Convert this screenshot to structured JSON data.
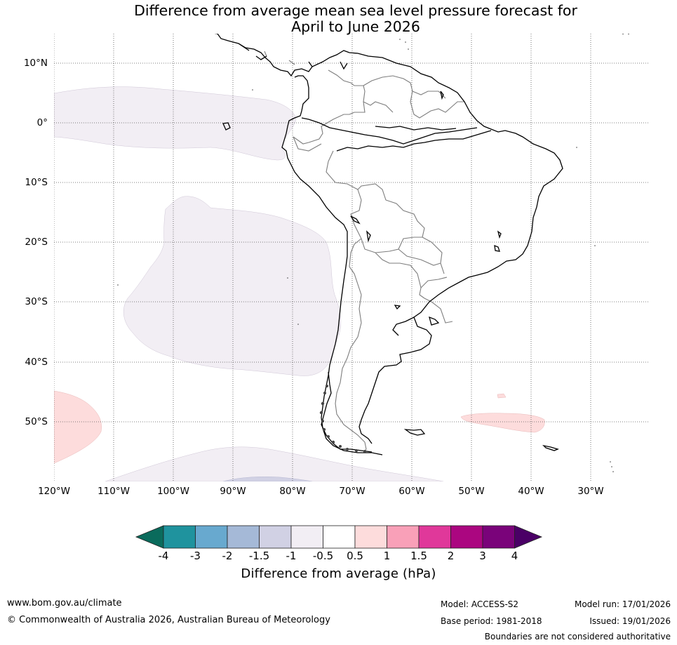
{
  "title": {
    "line1": "Difference from average mean sea level pressure forecast for",
    "line2": "April to June 2026"
  },
  "map": {
    "lat_labels": [
      "10°N",
      "0°",
      "10°S",
      "20°S",
      "30°S",
      "40°S",
      "50°S"
    ],
    "lon_labels": [
      "120°W",
      "110°W",
      "100°W",
      "90°W",
      "80°W",
      "70°W",
      "60°W",
      "50°W",
      "40°W",
      "30°W"
    ],
    "anomaly_regions": [
      {
        "name": "equatorial-pacific",
        "category": "-1 to -0.5"
      },
      {
        "name": "southeast-pacific",
        "category": "-1 to -0.5"
      },
      {
        "name": "southern-ocean-south",
        "category": "-1 to -0.5"
      },
      {
        "name": "southern-ocean-core",
        "category": "-1.5 to -1"
      },
      {
        "name": "southwest-pacific",
        "category": "0.5 to 1"
      },
      {
        "name": "south-atlantic",
        "category": "0.5 to 1"
      }
    ]
  },
  "colorbar": {
    "ticks": [
      "-4",
      "-3",
      "-2",
      "-1.5",
      "-1",
      "-0.5",
      "0.5",
      "1",
      "1.5",
      "2",
      "3",
      "4"
    ],
    "colors": [
      "#0a6b5c",
      "#1f939e",
      "#68a9cf",
      "#a5b9d7",
      "#d1d1e4",
      "#f2eef4",
      "#ffffff",
      "#fddcdc",
      "#f9a0b8",
      "#e0389a",
      "#ab0680",
      "#7a037a",
      "#4a0066"
    ],
    "label": "Difference from average (hPa)"
  },
  "footer": {
    "website": "www.bom.gov.au/climate",
    "copyright": "© Commonwealth of Australia 2026, Australian Bureau of Meteorology",
    "model": "Model: ACCESS-S2",
    "base_period": "Base period: 1981-2018",
    "model_run": "Model run: 17/01/2026",
    "issued": "Issued: 19/01/2026",
    "disclaimer": "Boundaries are not considered authoritative"
  }
}
